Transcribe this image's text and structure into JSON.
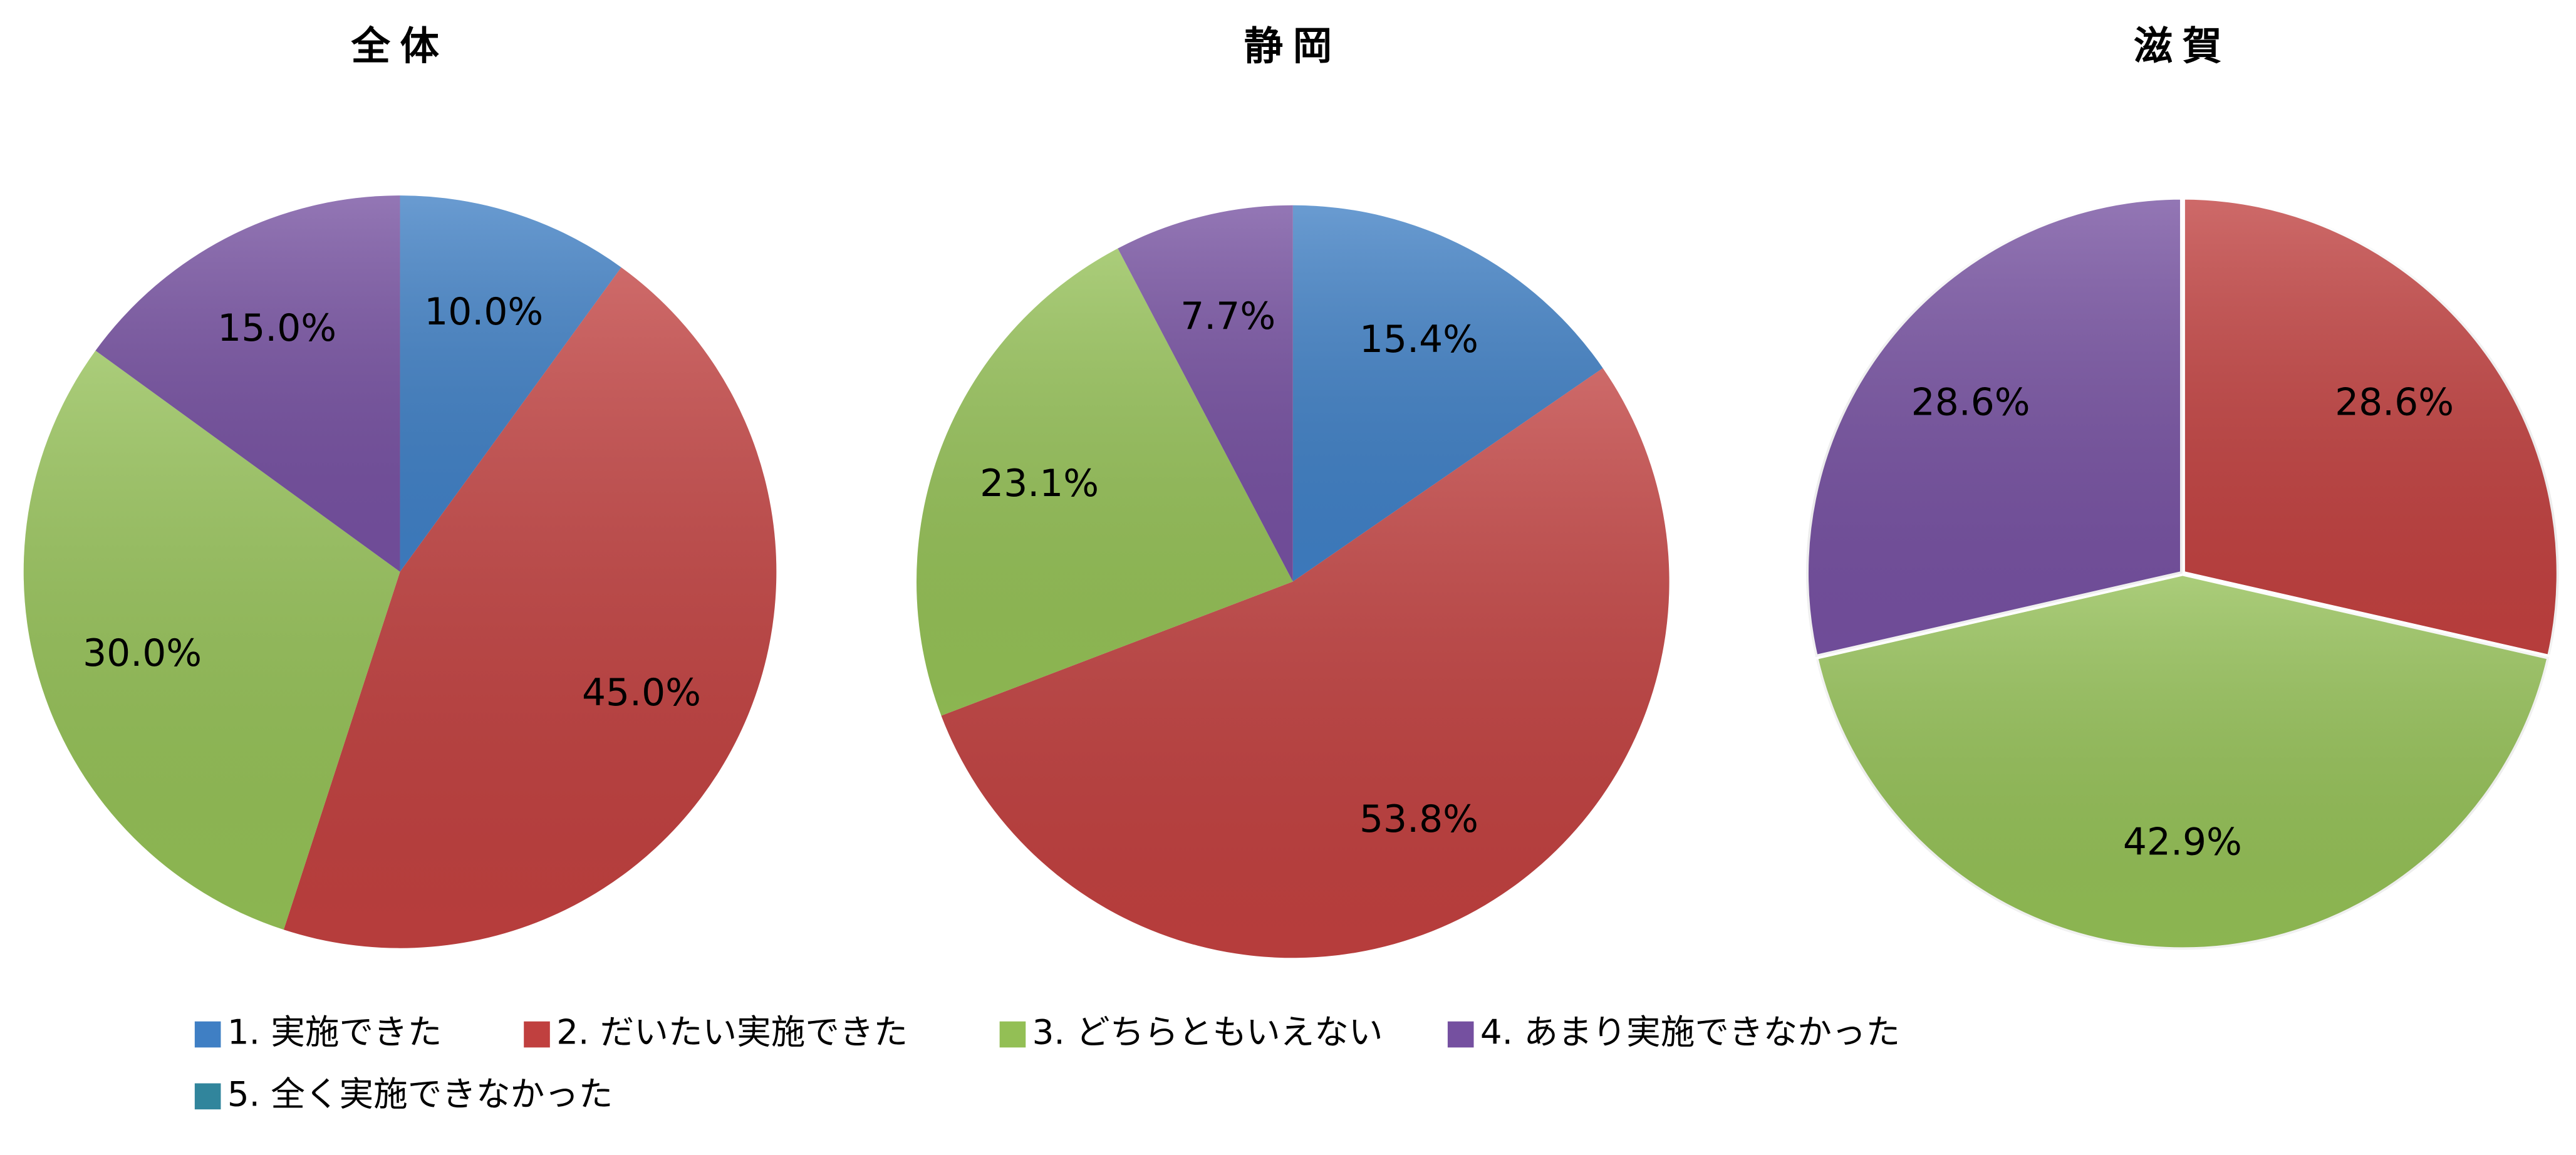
{
  "chart_data": [
    {
      "type": "pie",
      "title": "全体",
      "categories": [
        "1. 実施できた",
        "2. だいたい実施できた",
        "3. どちらともいえない",
        "4. あまり実施できなかった",
        "5. 全く実施できなかった"
      ],
      "values": [
        10.0,
        45.0,
        30.0,
        15.0,
        0
      ],
      "value_labels": [
        "10.0%",
        "45.0%",
        "30.0%",
        "15.0%",
        null
      ],
      "colors": [
        "#3f7fc4",
        "#c0403f",
        "#93bf55",
        "#7550a0",
        "#31859c"
      ]
    },
    {
      "type": "pie",
      "title": "静岡",
      "categories": [
        "1. 実施できた",
        "2. だいたい実施できた",
        "3. どちらともいえない",
        "4. あまり実施できなかった",
        "5. 全く実施できなかった"
      ],
      "values": [
        15.4,
        53.8,
        23.1,
        7.7,
        0
      ],
      "value_labels": [
        "15.4%",
        "53.8%",
        "23.1%",
        "7.7%",
        null
      ],
      "colors": [
        "#3f7fc4",
        "#c0403f",
        "#93bf55",
        "#7550a0",
        "#31859c"
      ]
    },
    {
      "type": "pie",
      "title": "滋賀",
      "categories": [
        "1. 実施できた",
        "2. だいたい実施できた",
        "3. どちらともいえない",
        "4. あまり実施できなかった",
        "5. 全く実施できなかった"
      ],
      "values": [
        0,
        28.6,
        42.9,
        28.6,
        0
      ],
      "value_labels": [
        null,
        "28.6%",
        "42.9%",
        "28.6%",
        null
      ],
      "colors": [
        "#3f7fc4",
        "#c0403f",
        "#93bf55",
        "#7550a0",
        "#31859c"
      ]
    }
  ]
}
